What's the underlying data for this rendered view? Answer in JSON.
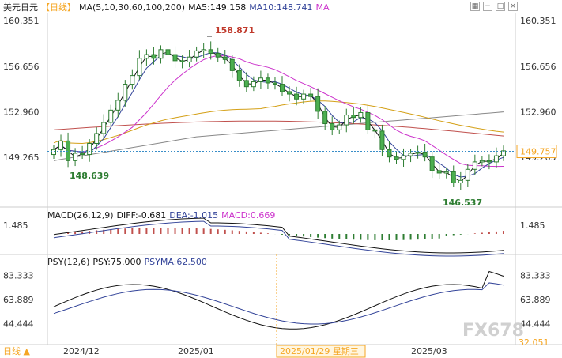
{
  "header": {
    "symbol": "美元日元",
    "period": "【日线】",
    "ma_label": "MA(5,10,30,60,100,200)",
    "ma5": "MA5:149.158",
    "ma10": "MA10:148.741",
    "ma_more": "MA"
  },
  "toolbar": {
    "icons": [
      "grid-icon",
      "minus-icon",
      "square-icon",
      "close-icon"
    ]
  },
  "main": {
    "y_ticks": [
      "160.351",
      "156.656",
      "152.960",
      "149.265"
    ],
    "current_price": "149.757",
    "high_label": "158.871",
    "low_label": "146.537",
    "low2_label": "148.639"
  },
  "macd": {
    "title": "MACD(26,12,9)",
    "diff": "DIFF:-0.681",
    "dea": "DEA:-1.015",
    "macd": "MACD:0.669",
    "y_tick": "1.485"
  },
  "psy": {
    "title": "PSY(12,6)",
    "psy": "PSY:75.000",
    "psyma": "PSYMA:62.500",
    "y_ticks": [
      "83.333",
      "63.889",
      "44.444",
      "32.051"
    ]
  },
  "x_axis": {
    "period_button": "日线",
    "labels": [
      "2024/12",
      "2025/01",
      "2025/03"
    ],
    "cursor_label": "2025/01/29 星期三"
  },
  "watermark": "FX678",
  "colors": {
    "up": "#2e7d32",
    "down": "#2e7d32",
    "ma5": "#111111",
    "ma10": "#334499",
    "ma30": "#cc33cc",
    "ma60": "#d4a017",
    "ma100": "#c0504d",
    "ma200": "#888888",
    "accent": "#f5a623"
  },
  "chart_data": [
    {
      "type": "candlestick",
      "title": "美元日元 日线",
      "ylim": [
        145.5,
        161.0
      ],
      "series_close": [
        149.9,
        150.6,
        149.0,
        149.6,
        149.5,
        150.4,
        151.2,
        152.1,
        153.1,
        153.9,
        155.2,
        155.9,
        157.3,
        157.6,
        157.3,
        158.0,
        157.6,
        157.1,
        157.0,
        157.4,
        157.9,
        158.0,
        157.7,
        157.4,
        157.2,
        156.3,
        155.5,
        155.0,
        155.4,
        155.7,
        155.3,
        155.2,
        154.6,
        154.4,
        154.0,
        154.4,
        154.2,
        153.0,
        152.0,
        151.5,
        151.9,
        152.7,
        152.5,
        152.9,
        151.5,
        151.4,
        149.9,
        149.3,
        149.1,
        149.4,
        149.6,
        149.7,
        149.3,
        148.2,
        148.0,
        148.1,
        147.2,
        147.4,
        148.3,
        148.9,
        149.0,
        148.9,
        149.4,
        149.8
      ],
      "annotations": [
        "158.871",
        "146.537",
        "148.639"
      ]
    },
    {
      "type": "bar",
      "title": "MACD(26,12,9)",
      "values_note": "DIFF -0.681, DEA -1.015, MACD 0.669"
    },
    {
      "type": "line",
      "title": "PSY(12,6)",
      "values_note": "PSY 75.000, PSYMA 62.500"
    }
  ]
}
